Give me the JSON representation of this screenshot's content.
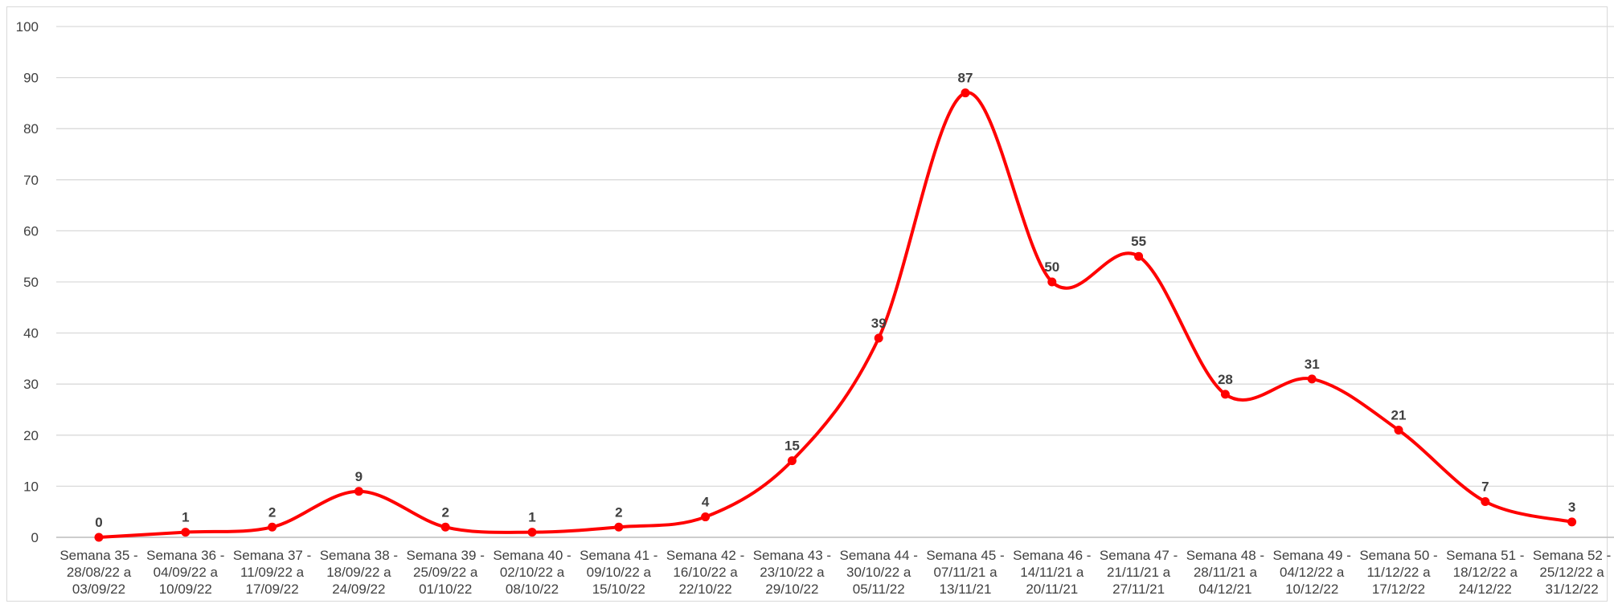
{
  "chart_data": {
    "type": "line",
    "title": "",
    "xlabel": "",
    "ylabel": "",
    "ylim": [
      0,
      100
    ],
    "yticks": [
      "0",
      "10",
      "20",
      "30",
      "40",
      "50",
      "60",
      "70",
      "80",
      "90",
      "100"
    ],
    "grid": true,
    "smooth": true,
    "line_color": "#ff0000",
    "gridline_color": "#d9d9d9",
    "categories": [
      [
        "Semana 35 -",
        "28/08/22 a",
        "03/09/22"
      ],
      [
        "Semana 36 -",
        "04/09/22 a",
        "10/09/22"
      ],
      [
        "Semana 37 -",
        "11/09/22 a",
        "17/09/22"
      ],
      [
        "Semana 38 -",
        "18/09/22 a",
        "24/09/22"
      ],
      [
        "Semana 39 -",
        "25/09/22 a",
        "01/10/22"
      ],
      [
        "Semana 40 -",
        "02/10/22 a",
        "08/10/22"
      ],
      [
        "Semana 41 -",
        "09/10/22 a",
        "15/10/22"
      ],
      [
        "Semana 42 -",
        "16/10/22 a",
        "22/10/22"
      ],
      [
        "Semana 43 -",
        "23/10/22 a",
        "29/10/22"
      ],
      [
        "Semana 44 -",
        "30/10/22 a",
        "05/11/22"
      ],
      [
        "Semana 45 -",
        "07/11/21 a",
        "13/11/21"
      ],
      [
        "Semana 46 -",
        "14/11/21 a",
        "20/11/21"
      ],
      [
        "Semana 47 -",
        "21/11/21 a",
        "27/11/21"
      ],
      [
        "Semana 48 -",
        "28/11/21 a",
        "04/12/21"
      ],
      [
        "Semana 49 -",
        "04/12/22 a",
        "10/12/22"
      ],
      [
        "Semana 50 -",
        "11/12/22 a",
        "17/12/22"
      ],
      [
        "Semana 51 -",
        "18/12/22 a",
        "24/12/22"
      ],
      [
        "Semana 52 -",
        "25/12/22 a",
        "31/12/22"
      ]
    ],
    "series": [
      {
        "values": [
          0,
          1,
          2,
          9,
          2,
          1,
          2,
          4,
          15,
          39,
          87,
          50,
          55,
          28,
          31,
          21,
          7,
          3
        ]
      }
    ]
  }
}
